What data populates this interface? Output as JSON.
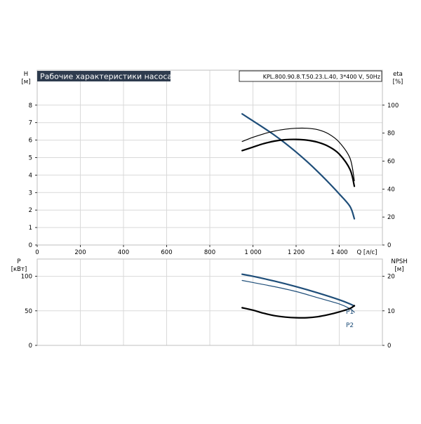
{
  "chart_data": [
    {
      "type": "line",
      "title": "Рабочие характеристики насоса",
      "subtitle": "KPL.800.90.8.T.50.23.L.40, 3*400 V, 50Hz",
      "xlabel": "Q [л/с]",
      "ylabel_name": "H",
      "ylabel_unit": "[м]",
      "y2label_name": "eta",
      "y2label_unit": "[%]",
      "xlim": [
        0,
        1600
      ],
      "ylim": [
        0,
        10
      ],
      "y2lim": [
        0,
        125
      ],
      "x_ticks": [
        {
          "v": 0,
          "label": "0"
        },
        {
          "v": 200,
          "label": "200"
        },
        {
          "v": 400,
          "label": "400"
        },
        {
          "v": 600,
          "label": "600"
        },
        {
          "v": 800,
          "label": "800"
        },
        {
          "v": 1000,
          "label": "1 000"
        },
        {
          "v": 1200,
          "label": "1 200"
        },
        {
          "v": 1400,
          "label": "1 400"
        }
      ],
      "y_ticks": [
        0,
        1,
        2,
        3,
        4,
        5,
        6,
        7,
        8
      ],
      "y2_ticks": [
        0,
        20,
        40,
        60,
        80,
        100
      ],
      "grid": true,
      "series": [
        {
          "color": "#1f4e79",
          "axis": "left",
          "x": [
            950,
            1000,
            1050,
            1100,
            1150,
            1200,
            1250,
            1300,
            1350,
            1400,
            1450,
            1470
          ],
          "y": [
            7.5,
            7.1,
            6.7,
            6.28,
            5.82,
            5.32,
            4.78,
            4.2,
            3.58,
            2.92,
            2.2,
            1.5
          ]
        },
        {
          "color": "#000000",
          "axis": "right",
          "x": [
            950,
            1000,
            1050,
            1100,
            1150,
            1200,
            1250,
            1300,
            1350,
            1400,
            1450,
            1470
          ],
          "y": [
            74,
            77,
            79.5,
            81.5,
            82.8,
            83.5,
            83.5,
            82.5,
            79.5,
            73.5,
            62,
            46
          ]
        },
        {
          "color": "#000000",
          "axis": "right",
          "x": [
            950,
            1000,
            1050,
            1100,
            1150,
            1200,
            1250,
            1300,
            1350,
            1400,
            1450,
            1470
          ],
          "y": [
            67.5,
            70,
            72.5,
            74.3,
            75.3,
            75.5,
            75,
            73.5,
            70.5,
            65,
            54,
            42
          ]
        }
      ]
    },
    {
      "type": "line",
      "xlim": [
        0,
        1600
      ],
      "ylabel_name": "P",
      "ylabel_unit": "[кВт]",
      "y2label_name": "NPSH",
      "y2label_unit": "[м]",
      "ylim": [
        0,
        125
      ],
      "y2lim": [
        0,
        25
      ],
      "y_ticks": [
        0,
        50,
        100
      ],
      "y2_ticks": [
        0,
        10,
        20
      ],
      "grid": true,
      "series": [
        {
          "name": "P1",
          "color": "#1f4e79",
          "axis": "left",
          "x": [
            950,
            1000,
            1100,
            1200,
            1300,
            1400,
            1450,
            1470
          ],
          "y": [
            103,
            100,
            93,
            85,
            76,
            66,
            60,
            57
          ]
        },
        {
          "name": "P2",
          "color": "#1f4e79",
          "axis": "left",
          "x": [
            950,
            1000,
            1100,
            1200,
            1300,
            1400,
            1450,
            1470
          ],
          "y": [
            94,
            91,
            85,
            78,
            69,
            60,
            53,
            48
          ]
        },
        {
          "color": "#000000",
          "axis": "right",
          "x": [
            950,
            1000,
            1050,
            1100,
            1150,
            1200,
            1250,
            1300,
            1350,
            1400,
            1450,
            1470
          ],
          "y": [
            10.9,
            10.2,
            9.3,
            8.6,
            8.2,
            8.0,
            8.0,
            8.3,
            8.9,
            9.7,
            10.7,
            11.5
          ]
        }
      ]
    }
  ]
}
